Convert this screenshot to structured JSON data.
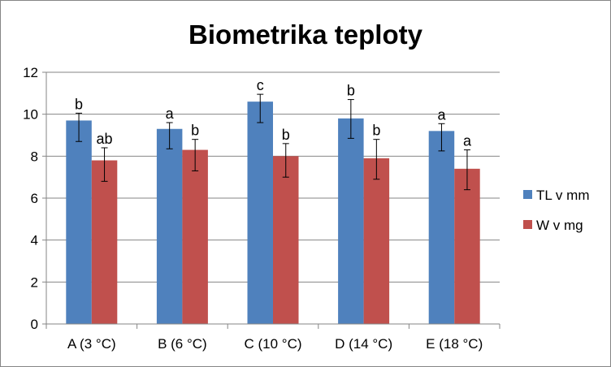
{
  "chart_data": {
    "type": "bar",
    "title": "Biometrika teploty",
    "xlabel": "",
    "ylabel": "",
    "ylim": [
      0,
      12
    ],
    "yticks": [
      0,
      2,
      4,
      6,
      8,
      10,
      12
    ],
    "grid": true,
    "legend_position": "right",
    "categories": [
      "A (3 °C)",
      "B (6 °C)",
      "C (10 °C)",
      "D (14 °C)",
      "E (18 °C)"
    ],
    "series": [
      {
        "name": "TL v mm",
        "color": "#4F81BD",
        "values": [
          9.7,
          9.3,
          10.6,
          9.8,
          9.2
        ],
        "error_low": [
          8.7,
          8.35,
          9.6,
          8.85,
          8.25
        ],
        "error_high": [
          10.05,
          9.6,
          10.95,
          10.7,
          9.55
        ],
        "letters": [
          "b",
          "a",
          "c",
          "b",
          "a"
        ]
      },
      {
        "name": "W v mg",
        "color": "#C0504D",
        "values": [
          7.8,
          8.3,
          8.0,
          7.9,
          7.4
        ],
        "error_low": [
          6.8,
          7.3,
          7.0,
          6.9,
          6.4
        ],
        "error_high": [
          8.4,
          8.8,
          8.6,
          8.8,
          8.3
        ],
        "letters": [
          "ab",
          "b",
          "b",
          "b",
          "a"
        ]
      }
    ]
  }
}
